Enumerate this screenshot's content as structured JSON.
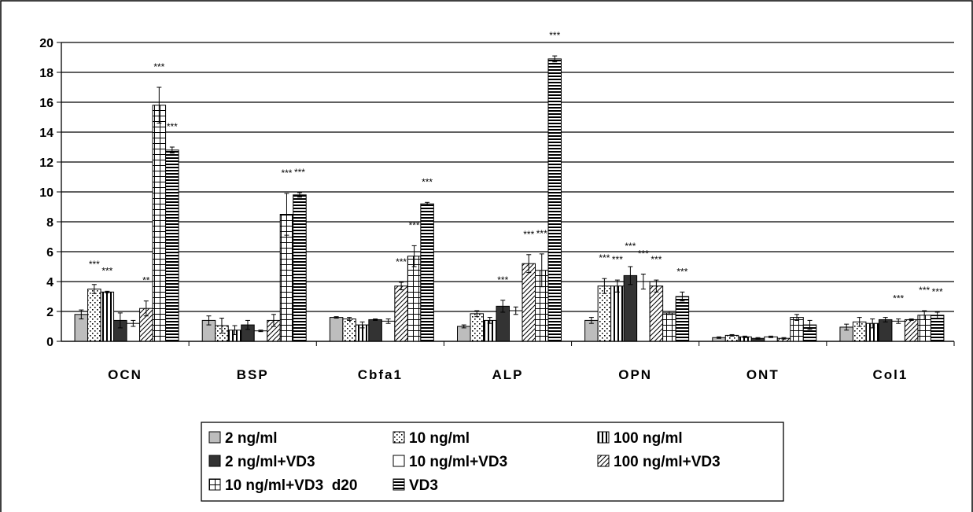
{
  "chart_data": {
    "type": "bar",
    "title": "",
    "xlabel": "",
    "ylabel": "",
    "ylim": [
      0,
      20
    ],
    "yticks": [
      0,
      2,
      4,
      6,
      8,
      10,
      12,
      14,
      16,
      18,
      20
    ],
    "grid": true,
    "legend_position": "bottom",
    "categories": [
      "OCN",
      "BSP",
      "Cbfa1",
      "ALP",
      "OPN",
      "ONT",
      "Col1"
    ],
    "series": [
      {
        "name": "2 ng/ml",
        "pattern": "solid-gray",
        "values": [
          1.8,
          1.4,
          1.6,
          1.0,
          1.4,
          0.25,
          0.95
        ],
        "errors": [
          0.3,
          0.3,
          0.05,
          0.1,
          0.2,
          0.05,
          0.2
        ],
        "significance": [
          "",
          "",
          "",
          "",
          "",
          "",
          ""
        ]
      },
      {
        "name": "10 ng/ml",
        "pattern": "dots",
        "values": [
          3.5,
          1.05,
          1.5,
          1.85,
          3.7,
          0.4,
          1.3
        ],
        "errors": [
          0.3,
          0.5,
          0.1,
          0.2,
          0.5,
          0.05,
          0.3
        ],
        "significance": [
          "***",
          "",
          "",
          "",
          "***",
          "",
          ""
        ]
      },
      {
        "name": "100 ng/ml",
        "pattern": "vertical-lines",
        "values": [
          3.3,
          0.75,
          1.1,
          1.4,
          3.7,
          0.3,
          1.2
        ],
        "errors": [
          0.05,
          0.3,
          0.2,
          0.2,
          0.4,
          0.05,
          0.3
        ],
        "significance": [
          "***",
          "",
          "",
          "",
          "***",
          "",
          ""
        ]
      },
      {
        "name": "2 ng/ml+VD3",
        "pattern": "solid-dark",
        "values": [
          1.4,
          1.1,
          1.45,
          2.35,
          4.4,
          0.2,
          1.45
        ],
        "errors": [
          0.5,
          0.3,
          0.05,
          0.4,
          0.6,
          0.05,
          0.15
        ],
        "significance": [
          "",
          "",
          "",
          "***",
          "***",
          "",
          ""
        ]
      },
      {
        "name": "10 ng/ml+VD3",
        "pattern": "white",
        "values": [
          1.2,
          0.7,
          1.35,
          2.05,
          4.0,
          0.3,
          1.35
        ],
        "errors": [
          0.2,
          0.05,
          0.15,
          0.25,
          0.5,
          0.05,
          0.15
        ],
        "significance": [
          "",
          "",
          "",
          "",
          "***",
          "",
          "***"
        ]
      },
      {
        "name": "100 ng/ml+VD3",
        "pattern": "diagonal",
        "values": [
          2.2,
          1.4,
          3.7,
          5.2,
          3.7,
          0.2,
          1.45
        ],
        "errors": [
          0.5,
          0.4,
          0.25,
          0.6,
          0.4,
          0.05,
          0.05
        ],
        "significance": [
          "**",
          "",
          "***",
          "***",
          "***",
          "",
          ""
        ]
      },
      {
        "name": "10 ng/ml+VD3  d20",
        "pattern": "grid",
        "values": [
          15.8,
          8.5,
          5.7,
          4.75,
          1.9,
          1.6,
          1.75
        ],
        "errors": [
          1.2,
          1.4,
          0.7,
          1.1,
          0.1,
          0.2,
          0.3
        ],
        "significance": [
          "***",
          "***",
          "***",
          "***",
          "",
          "",
          "***"
        ]
      },
      {
        "name": "VD3",
        "pattern": "horizontal-lines",
        "values": [
          12.8,
          9.8,
          9.2,
          18.9,
          3.0,
          1.1,
          1.75
        ],
        "errors": [
          0.2,
          0.15,
          0.1,
          0.2,
          0.3,
          0.3,
          0.2
        ],
        "significance": [
          "***",
          "***",
          "***",
          "***",
          "***",
          "",
          "***"
        ]
      }
    ]
  }
}
